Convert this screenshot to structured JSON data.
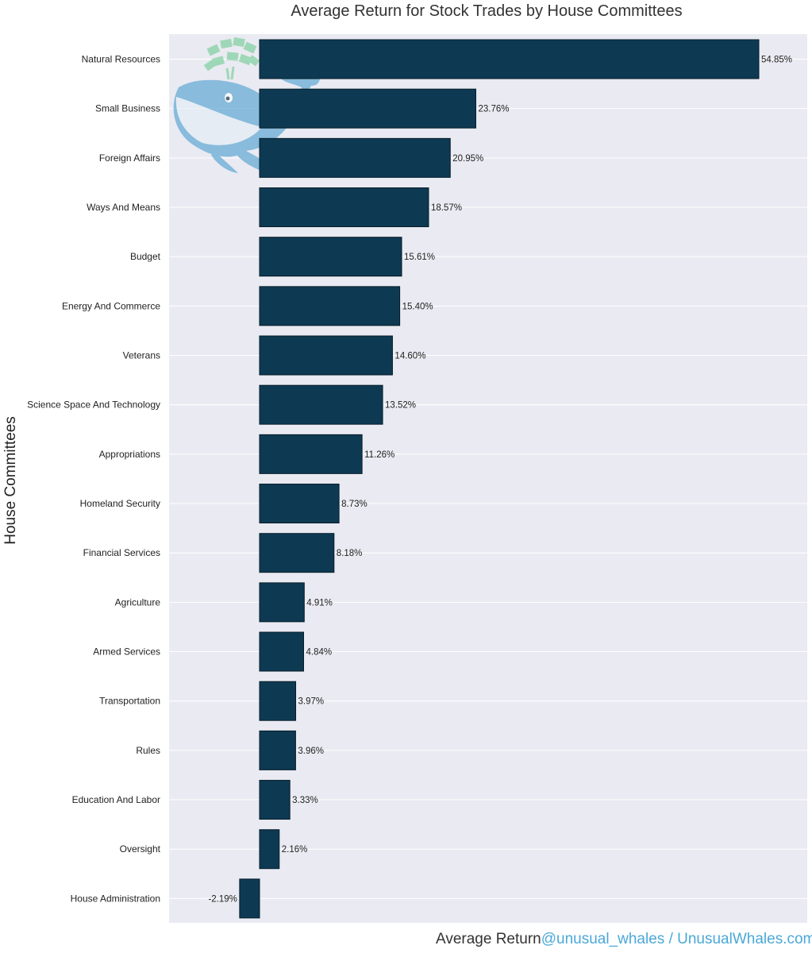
{
  "chart_data": {
    "type": "bar",
    "orientation": "horizontal",
    "title": "Average Return for Stock Trades by House Committees",
    "xlabel": "Average Return",
    "ylabel": "House Committees",
    "credit": "@unusual_whales / UnusualWhales.com",
    "grid": true,
    "xlim": [
      -4.4,
      57.5
    ],
    "categories": [
      "Natural Resources",
      "Small Business",
      "Foreign Affairs",
      "Ways And Means",
      "Budget",
      "Energy And Commerce",
      "Veterans",
      "Science Space And Technology",
      "Appropriations",
      "Homeland Security",
      "Financial Services",
      "Agriculture",
      "Armed Services",
      "Transportation",
      "Rules",
      "Education And Labor",
      "Oversight",
      "House Administration"
    ],
    "values": [
      54.85,
      23.76,
      20.95,
      18.57,
      15.61,
      15.4,
      14.6,
      13.52,
      11.26,
      8.73,
      8.18,
      4.91,
      4.84,
      3.97,
      3.96,
      3.33,
      2.16,
      -2.19
    ],
    "data_labels": [
      "54.85%",
      "23.76%",
      "20.95%",
      "18.57%",
      "15.61%",
      "15.40%",
      "14.60%",
      "13.52%",
      "11.26%",
      "8.73%",
      "8.18%",
      "4.91%",
      "4.84%",
      "3.97%",
      "3.96%",
      "3.33%",
      "2.16%",
      "-2.19%"
    ],
    "colors": {
      "bar": "#0d3a52",
      "bar_edge": "#061c29",
      "plot_background": "#eaeaf2",
      "grid": "#ffffff",
      "credit": "#4aa8d8"
    }
  },
  "watermark": "whale-logo-icon"
}
